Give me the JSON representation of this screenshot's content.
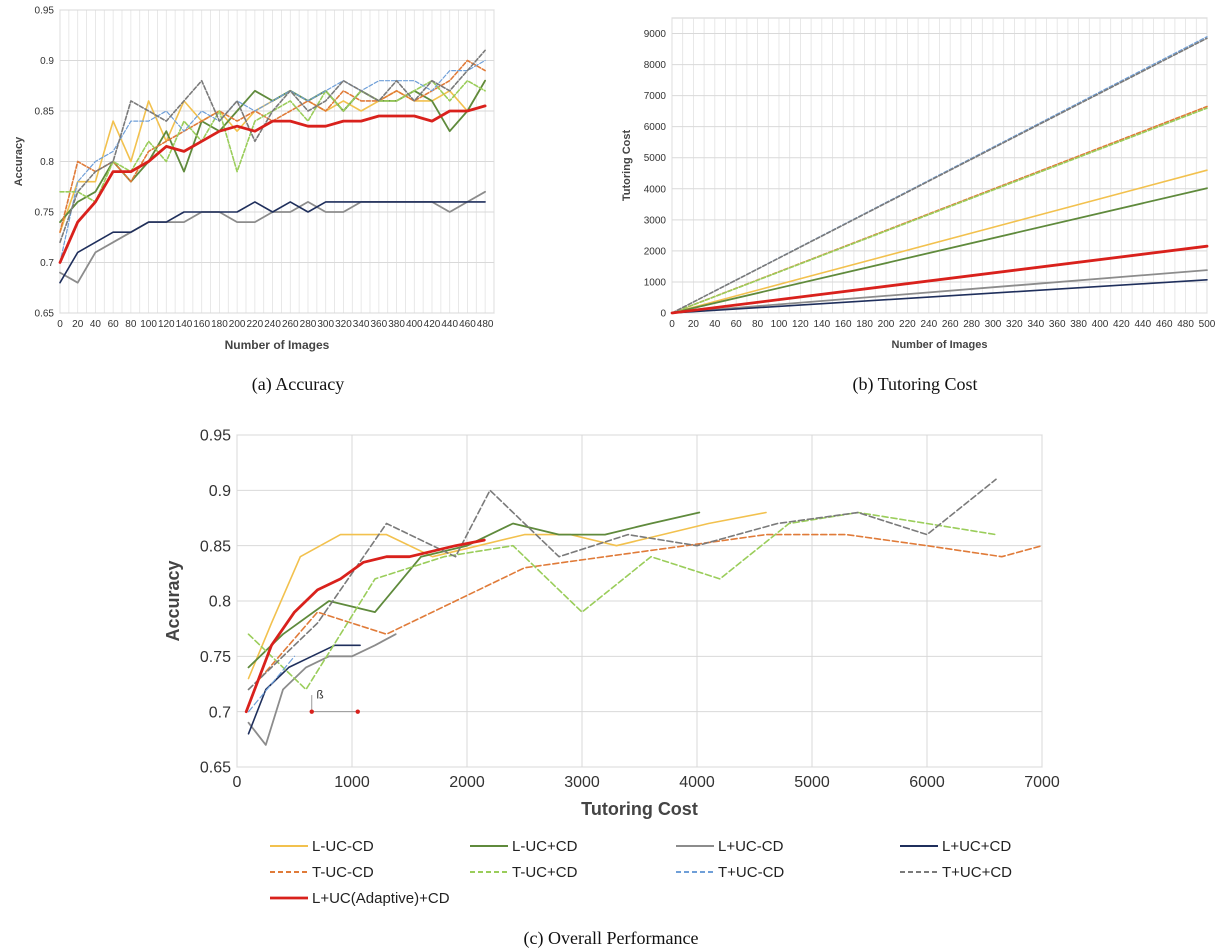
{
  "captions": {
    "a": "(a) Accuracy",
    "b": "(b) Tutoring Cost",
    "c": "(c) Overall Performance"
  },
  "series_styles": [
    {
      "name": "L-UC-CD",
      "color": "#f2c14e",
      "dash": false,
      "width": 1.6
    },
    {
      "name": "L-UC+CD",
      "color": "#5f8a3c",
      "dash": false,
      "width": 1.8
    },
    {
      "name": "L+UC-CD",
      "color": "#8c8c8c",
      "dash": false,
      "width": 1.8
    },
    {
      "name": "L+UC+CD",
      "color": "#1f2f5c",
      "dash": false,
      "width": 1.6
    },
    {
      "name": "T-UC-CD",
      "color": "#e07b39",
      "dash": true,
      "width": 1.6
    },
    {
      "name": "T-UC+CD",
      "color": "#9acd5a",
      "dash": true,
      "width": 1.6
    },
    {
      "name": "T+UC-CD",
      "color": "#6f9fd8",
      "dash": true,
      "width": 1.2
    },
    {
      "name": "T+UC+CD",
      "color": "#7a7a7a",
      "dash": true,
      "width": 1.6
    },
    {
      "name": "L+UC(Adaptive)+CD",
      "color": "#d9211c",
      "dash": false,
      "width": 2.8
    }
  ],
  "annotation": {
    "beta_label": "ß"
  },
  "chart_data": [
    {
      "id": "accuracy",
      "type": "line",
      "title": "",
      "xlabel": "Number of Images",
      "ylabel": "Accuracy",
      "xlim": [
        0,
        490
      ],
      "ylim": [
        0.65,
        0.95
      ],
      "x_ticks": [
        "0",
        "20",
        "40",
        "60",
        "80",
        "100",
        "120",
        "140",
        "160",
        "180",
        "200",
        "220",
        "240",
        "260",
        "280",
        "300",
        "320",
        "340",
        "360",
        "380",
        "400",
        "420",
        "440",
        "460",
        "480"
      ],
      "y_ticks": [
        "0.65",
        "0.7",
        "0.75",
        "0.8",
        "0.85",
        "0.9",
        "0.95"
      ],
      "grid": true,
      "x": [
        0,
        20,
        40,
        60,
        80,
        100,
        120,
        140,
        160,
        180,
        200,
        220,
        240,
        260,
        280,
        300,
        320,
        340,
        360,
        380,
        400,
        420,
        440,
        460,
        480
      ],
      "series": [
        {
          "name": "L-UC-CD",
          "values": [
            0.73,
            0.78,
            0.78,
            0.84,
            0.8,
            0.86,
            0.82,
            0.86,
            0.84,
            0.85,
            0.83,
            0.85,
            0.86,
            0.87,
            0.86,
            0.85,
            0.86,
            0.85,
            0.86,
            0.87,
            0.86,
            0.86,
            0.87,
            0.85,
            0.88
          ]
        },
        {
          "name": "L-UC+CD",
          "values": [
            0.74,
            0.76,
            0.77,
            0.8,
            0.78,
            0.8,
            0.83,
            0.79,
            0.84,
            0.83,
            0.85,
            0.87,
            0.86,
            0.87,
            0.86,
            0.87,
            0.85,
            0.87,
            0.86,
            0.86,
            0.87,
            0.86,
            0.83,
            0.85,
            0.88
          ]
        },
        {
          "name": "L+UC-CD",
          "values": [
            0.69,
            0.68,
            0.71,
            0.72,
            0.73,
            0.74,
            0.74,
            0.74,
            0.75,
            0.75,
            0.74,
            0.74,
            0.75,
            0.75,
            0.76,
            0.75,
            0.75,
            0.76,
            0.76,
            0.76,
            0.76,
            0.76,
            0.75,
            0.76,
            0.77
          ]
        },
        {
          "name": "L+UC+CD",
          "values": [
            0.68,
            0.71,
            0.72,
            0.73,
            0.73,
            0.74,
            0.74,
            0.75,
            0.75,
            0.75,
            0.75,
            0.76,
            0.75,
            0.76,
            0.75,
            0.76,
            0.76,
            0.76,
            0.76,
            0.76,
            0.76,
            0.76,
            0.76,
            0.76,
            0.76
          ]
        },
        {
          "name": "T-UC-CD",
          "values": [
            0.73,
            0.8,
            0.79,
            0.8,
            0.78,
            0.81,
            0.82,
            0.83,
            0.84,
            0.85,
            0.84,
            0.85,
            0.84,
            0.85,
            0.86,
            0.85,
            0.87,
            0.86,
            0.86,
            0.87,
            0.86,
            0.87,
            0.88,
            0.9,
            0.89
          ]
        },
        {
          "name": "T-UC+CD",
          "values": [
            0.77,
            0.77,
            0.76,
            0.8,
            0.79,
            0.82,
            0.8,
            0.84,
            0.82,
            0.85,
            0.79,
            0.84,
            0.85,
            0.86,
            0.84,
            0.87,
            0.85,
            0.87,
            0.86,
            0.86,
            0.87,
            0.88,
            0.86,
            0.88,
            0.87
          ]
        },
        {
          "name": "T+UC-CD",
          "values": [
            0.7,
            0.78,
            0.8,
            0.81,
            0.84,
            0.84,
            0.85,
            0.83,
            0.85,
            0.84,
            0.86,
            0.85,
            0.86,
            0.87,
            0.86,
            0.87,
            0.88,
            0.87,
            0.88,
            0.88,
            0.88,
            0.87,
            0.89,
            0.89,
            0.9
          ]
        },
        {
          "name": "T+UC+CD",
          "values": [
            0.72,
            0.77,
            0.79,
            0.8,
            0.86,
            0.85,
            0.84,
            0.86,
            0.88,
            0.84,
            0.86,
            0.82,
            0.85,
            0.87,
            0.85,
            0.86,
            0.88,
            0.87,
            0.86,
            0.88,
            0.86,
            0.88,
            0.87,
            0.89,
            0.91
          ]
        },
        {
          "name": "L+UC(Adaptive)+CD",
          "values": [
            0.7,
            0.74,
            0.76,
            0.79,
            0.79,
            0.8,
            0.815,
            0.81,
            0.82,
            0.83,
            0.835,
            0.83,
            0.84,
            0.84,
            0.835,
            0.835,
            0.84,
            0.84,
            0.845,
            0.845,
            0.845,
            0.84,
            0.85,
            0.85,
            0.855
          ]
        }
      ]
    },
    {
      "id": "tutoring_cost",
      "type": "line",
      "title": "",
      "xlabel": "Number of Images",
      "ylabel": "Tutoring Cost",
      "xlim": [
        0,
        500
      ],
      "ylim": [
        0,
        9500
      ],
      "x_ticks": [
        "0",
        "20",
        "40",
        "60",
        "80",
        "100",
        "120",
        "140",
        "160",
        "180",
        "200",
        "220",
        "240",
        "260",
        "280",
        "300",
        "320",
        "340",
        "360",
        "380",
        "400",
        "420",
        "440",
        "460",
        "480",
        "500"
      ],
      "y_ticks": [
        "0",
        "1000",
        "2000",
        "3000",
        "4000",
        "5000",
        "6000",
        "7000",
        "8000",
        "9000"
      ],
      "grid": true,
      "x": [
        0,
        500
      ],
      "series": [
        {
          "name": "L-UC-CD",
          "values": [
            0,
            4600
          ]
        },
        {
          "name": "L-UC+CD",
          "values": [
            0,
            4020
          ]
        },
        {
          "name": "L+UC-CD",
          "values": [
            0,
            1380
          ]
        },
        {
          "name": "L+UC+CD",
          "values": [
            0,
            1070
          ]
        },
        {
          "name": "T-UC-CD",
          "values": [
            0,
            6650
          ]
        },
        {
          "name": "T-UC+CD",
          "values": [
            0,
            6600
          ]
        },
        {
          "name": "T+UC-CD",
          "values": [
            0,
            8900
          ]
        },
        {
          "name": "T+UC+CD",
          "values": [
            0,
            8850
          ]
        },
        {
          "name": "L+UC(Adaptive)+CD",
          "values": [
            0,
            2150
          ]
        }
      ]
    },
    {
      "id": "overall",
      "type": "line",
      "title": "",
      "xlabel": "Tutoring Cost",
      "ylabel": "Accuracy",
      "xlim": [
        0,
        7000
      ],
      "ylim": [
        0.65,
        0.95
      ],
      "x_ticks": [
        "0",
        "1000",
        "2000",
        "3000",
        "4000",
        "5000",
        "6000",
        "7000"
      ],
      "y_ticks": [
        "0.65",
        "0.7",
        "0.75",
        "0.8",
        "0.85",
        "0.9",
        "0.95"
      ],
      "grid": true,
      "legend": "bottom",
      "series": [
        {
          "name": "L-UC-CD",
          "x": [
            100,
            300,
            550,
            900,
            1300,
            1700,
            2100,
            2500,
            2900,
            3300,
            3700,
            4100,
            4600
          ],
          "y": [
            0.73,
            0.78,
            0.84,
            0.86,
            0.86,
            0.84,
            0.85,
            0.86,
            0.86,
            0.85,
            0.86,
            0.87,
            0.88
          ]
        },
        {
          "name": "L-UC+CD",
          "x": [
            100,
            400,
            800,
            1200,
            1600,
            2000,
            2400,
            2800,
            3200,
            3600,
            4020
          ],
          "y": [
            0.74,
            0.77,
            0.8,
            0.79,
            0.84,
            0.85,
            0.87,
            0.86,
            0.86,
            0.87,
            0.88
          ]
        },
        {
          "name": "L+UC-CD",
          "x": [
            100,
            250,
            400,
            600,
            800,
            1000,
            1200,
            1380
          ],
          "y": [
            0.69,
            0.67,
            0.72,
            0.74,
            0.75,
            0.75,
            0.76,
            0.77
          ]
        },
        {
          "name": "L+UC+CD",
          "x": [
            100,
            250,
            450,
            650,
            850,
            1070
          ],
          "y": [
            0.68,
            0.72,
            0.74,
            0.75,
            0.76,
            0.76
          ]
        },
        {
          "name": "T-UC-CD",
          "x": [
            200,
            700,
            1300,
            1900,
            2500,
            3200,
            3900,
            4600,
            5300,
            6000,
            6650,
            7000
          ],
          "y": [
            0.73,
            0.79,
            0.77,
            0.8,
            0.83,
            0.84,
            0.85,
            0.86,
            0.86,
            0.85,
            0.84,
            0.85
          ]
        },
        {
          "name": "T-UC+CD",
          "x": [
            100,
            600,
            1200,
            1800,
            2400,
            3000,
            3600,
            4200,
            4800,
            5400,
            6000,
            6600
          ],
          "y": [
            0.77,
            0.72,
            0.82,
            0.84,
            0.85,
            0.79,
            0.84,
            0.82,
            0.87,
            0.88,
            0.87,
            0.86
          ]
        },
        {
          "name": "T+UC-CD",
          "x": [
            100,
            500
          ],
          "y": [
            0.7,
            0.75
          ]
        },
        {
          "name": "T+UC+CD",
          "x": [
            100,
            700,
            1300,
            1900,
            2200,
            2800,
            3400,
            4000,
            4700,
            5400,
            6000,
            6600
          ],
          "y": [
            0.72,
            0.78,
            0.87,
            0.84,
            0.9,
            0.84,
            0.86,
            0.85,
            0.87,
            0.88,
            0.86,
            0.91
          ]
        },
        {
          "name": "L+UC(Adaptive)+CD",
          "x": [
            80,
            300,
            500,
            700,
            900,
            1100,
            1300,
            1500,
            1700,
            1900,
            2150
          ],
          "y": [
            0.7,
            0.76,
            0.79,
            0.81,
            0.82,
            0.835,
            0.84,
            0.84,
            0.845,
            0.85,
            0.855
          ]
        }
      ]
    }
  ]
}
